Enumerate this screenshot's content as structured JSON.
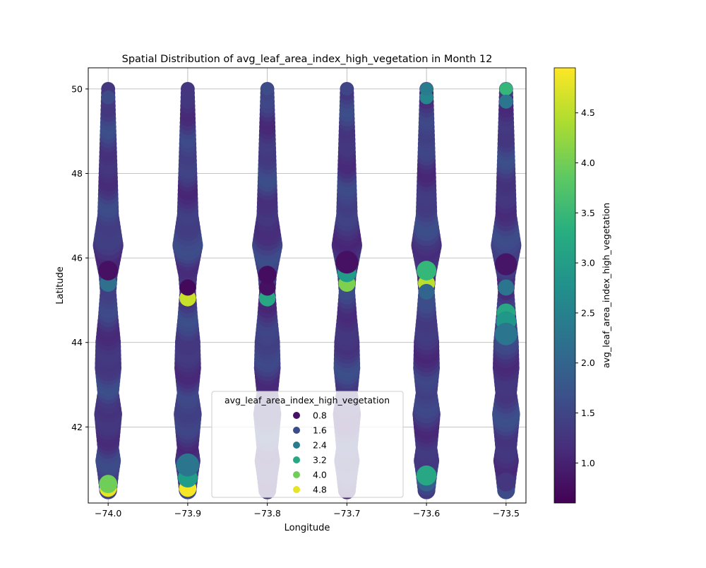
{
  "chart_data": {
    "type": "scatter",
    "title": "Spatial Distribution of avg_leaf_area_index_high_vegetation in Month 12",
    "xlabel": "Longitude",
    "ylabel": "Latitude",
    "xlim": [
      -74.025,
      -73.475
    ],
    "ylim": [
      40.2,
      50.5
    ],
    "xticks": [
      -74.0,
      -73.9,
      -73.8,
      -73.7,
      -73.6,
      -73.5
    ],
    "xtick_labels": [
      "−74.0",
      "−73.9",
      "−73.8",
      "−73.7",
      "−73.6",
      "−73.5"
    ],
    "yticks": [
      42,
      44,
      46,
      48,
      50
    ],
    "ytick_labels": [
      "42",
      "44",
      "46",
      "48",
      "50"
    ],
    "grid": true,
    "colormap": "viridis",
    "colorbar": {
      "label": "avg_leaf_area_index_high_vegetation",
      "range": [
        0.6,
        4.95
      ],
      "ticks": [
        1.0,
        1.5,
        2.0,
        2.5,
        3.0,
        3.5,
        4.0,
        4.5
      ],
      "tick_labels": [
        "1.0",
        "1.5",
        "2.0",
        "2.5",
        "3.0",
        "3.5",
        "4.0",
        "4.5"
      ]
    },
    "legend": {
      "title": "avg_leaf_area_index_high_vegetation",
      "placement": "lower-center",
      "entries": [
        {
          "label": "0.8",
          "value": 0.8
        },
        {
          "label": "1.6",
          "value": 1.6
        },
        {
          "label": "2.4",
          "value": 2.4
        },
        {
          "label": "3.2",
          "value": 3.2
        },
        {
          "label": "4.0",
          "value": 4.0
        },
        {
          "label": "4.8",
          "value": 4.8
        }
      ]
    },
    "longitudes": [
      -74.0,
      -73.9,
      -73.8,
      -73.7,
      -73.6,
      -73.5
    ],
    "latitude_range": [
      40.5,
      50.0
    ],
    "base_value": 1.35,
    "profile": [
      {
        "lat": 40.5,
        "size": 0.7
      },
      {
        "lat": 40.9,
        "size": 0.85
      },
      {
        "lat": 41.2,
        "size": 1.0
      },
      {
        "lat": 41.5,
        "size": 0.85
      },
      {
        "lat": 42.3,
        "size": 1.1
      },
      {
        "lat": 42.8,
        "size": 0.85
      },
      {
        "lat": 43.4,
        "size": 1.05
      },
      {
        "lat": 44.0,
        "size": 1.0
      },
      {
        "lat": 44.6,
        "size": 0.8
      },
      {
        "lat": 45.2,
        "size": 0.65
      },
      {
        "lat": 45.6,
        "size": 0.75
      },
      {
        "lat": 46.3,
        "size": 1.2
      },
      {
        "lat": 47.0,
        "size": 0.85
      },
      {
        "lat": 48.0,
        "size": 0.75
      },
      {
        "lat": 49.0,
        "size": 0.65
      },
      {
        "lat": 50.0,
        "size": 0.55
      }
    ],
    "highlights": [
      {
        "lon": -74.0,
        "lat": 40.55,
        "value": 4.8
      },
      {
        "lon": -74.0,
        "lat": 40.65,
        "value": 4.0
      },
      {
        "lon": -74.0,
        "lat": 45.4,
        "value": 2.2
      },
      {
        "lon": -74.0,
        "lat": 45.7,
        "value": 0.8
      },
      {
        "lon": -74.0,
        "lat": 49.8,
        "value": 1.6
      },
      {
        "lon": -73.9,
        "lat": 40.55,
        "value": 4.9
      },
      {
        "lon": -73.9,
        "lat": 40.8,
        "value": 3.0
      },
      {
        "lon": -73.9,
        "lat": 41.1,
        "value": 2.3
      },
      {
        "lon": -73.9,
        "lat": 45.05,
        "value": 4.6
      },
      {
        "lon": -73.9,
        "lat": 45.3,
        "value": 0.7
      },
      {
        "lon": -73.8,
        "lat": 45.05,
        "value": 3.2
      },
      {
        "lon": -73.8,
        "lat": 45.3,
        "value": 0.8
      },
      {
        "lon": -73.8,
        "lat": 45.6,
        "value": 0.75
      },
      {
        "lon": -73.8,
        "lat": 50.0,
        "value": 1.6
      },
      {
        "lon": -73.7,
        "lat": 45.4,
        "value": 4.1
      },
      {
        "lon": -73.7,
        "lat": 45.65,
        "value": 3.0
      },
      {
        "lon": -73.7,
        "lat": 45.9,
        "value": 0.8
      },
      {
        "lon": -73.7,
        "lat": 50.0,
        "value": 1.5
      },
      {
        "lon": -73.6,
        "lat": 40.7,
        "value": 1.9
      },
      {
        "lon": -73.6,
        "lat": 40.85,
        "value": 3.2
      },
      {
        "lon": -73.6,
        "lat": 45.4,
        "value": 4.5
      },
      {
        "lon": -73.6,
        "lat": 45.7,
        "value": 3.5
      },
      {
        "lon": -73.6,
        "lat": 45.2,
        "value": 2.0
      },
      {
        "lon": -73.6,
        "lat": 49.8,
        "value": 2.6
      },
      {
        "lon": -73.6,
        "lat": 50.0,
        "value": 2.4
      },
      {
        "lon": -73.5,
        "lat": 50.0,
        "value": 3.5
      },
      {
        "lon": -73.5,
        "lat": 49.7,
        "value": 2.3
      },
      {
        "lon": -73.5,
        "lat": 45.85,
        "value": 0.85
      },
      {
        "lon": -73.5,
        "lat": 45.3,
        "value": 2.3
      },
      {
        "lon": -73.5,
        "lat": 44.7,
        "value": 3.2
      },
      {
        "lon": -73.5,
        "lat": 44.5,
        "value": 2.9
      },
      {
        "lon": -73.5,
        "lat": 44.2,
        "value": 2.3
      },
      {
        "lon": -73.5,
        "lat": 40.7,
        "value": 1.3
      }
    ]
  }
}
